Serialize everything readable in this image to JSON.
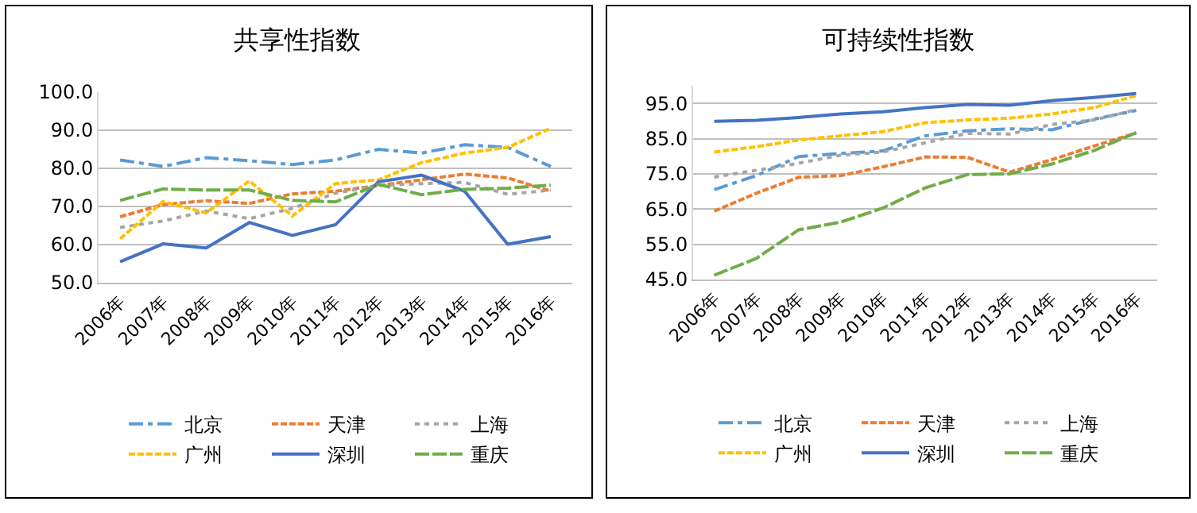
{
  "chart_data": [
    {
      "type": "line",
      "title": "共享性指数",
      "categories": [
        "2006年",
        "2007年",
        "2008年",
        "2009年",
        "2010年",
        "2011年",
        "2012年",
        "2013年",
        "2014年",
        "2015年",
        "2016年"
      ],
      "ylim": [
        50,
        100
      ],
      "yticks": [
        {
          "value": 50,
          "label": "50.0"
        },
        {
          "value": 60,
          "label": "60.0"
        },
        {
          "value": 70,
          "label": "70.0"
        },
        {
          "value": 80,
          "label": "80.0"
        },
        {
          "value": 90,
          "label": "90.0"
        },
        {
          "value": 100,
          "label": "100.0"
        }
      ],
      "grid": "y",
      "legend": "bottom",
      "marker": "none",
      "series": [
        {
          "name": "北京",
          "color": "#5b9bd5",
          "line_style": "dashdot",
          "values": [
            82.2,
            80.5,
            82.8,
            82,
            81,
            82.2,
            85,
            84,
            86.2,
            85.5,
            80.5
          ]
        },
        {
          "name": "天津",
          "color": "#ed7d31",
          "line_style": "dashed",
          "values": [
            67.3,
            70.5,
            71.5,
            70.8,
            73.3,
            74,
            75.5,
            77,
            78.5,
            77.5,
            74
          ]
        },
        {
          "name": "上海",
          "color": "#a5a5a5",
          "line_style": "dotted",
          "values": [
            64.5,
            66.2,
            68.8,
            66.8,
            69.5,
            73.5,
            75.5,
            76,
            76.3,
            73.2,
            74.3
          ]
        },
        {
          "name": "广州",
          "color": "#ffc000",
          "line_style": "dashed",
          "values": [
            61.5,
            71.3,
            68.3,
            76.7,
            67.5,
            76,
            77,
            81.5,
            84,
            85.5,
            90.5
          ]
        },
        {
          "name": "深圳",
          "color": "#4472c4",
          "line_style": "solid",
          "values": [
            55.5,
            60.2,
            59.1,
            65.8,
            62.4,
            65.2,
            76.5,
            78.2,
            74,
            60.1,
            62.1
          ]
        },
        {
          "name": "重庆",
          "color": "#70ad47",
          "line_style": "longdash",
          "values": [
            71.6,
            74.6,
            74.3,
            74.3,
            71.6,
            71.2,
            75.8,
            73.1,
            74.5,
            74.8,
            75.6
          ]
        }
      ]
    },
    {
      "type": "line",
      "title": "可持续性指数",
      "categories": [
        "2006年",
        "2007年",
        "2008年",
        "2009年",
        "2010年",
        "2011年",
        "2012年",
        "2013年",
        "2014年",
        "2015年",
        "2016年"
      ],
      "ylim": [
        45,
        100
      ],
      "yticks": [
        {
          "value": 45,
          "label": "45.0"
        },
        {
          "value": 55,
          "label": "55.0"
        },
        {
          "value": 65,
          "label": "65.0"
        },
        {
          "value": 75,
          "label": "75.0"
        },
        {
          "value": 85,
          "label": "85.0"
        },
        {
          "value": 95,
          "label": "95.0"
        }
      ],
      "grid": "y",
      "legend": "bottom",
      "marker": "none",
      "series": [
        {
          "name": "北京",
          "color": "#5b9bd5",
          "line_style": "dashdot",
          "values": [
            70.5,
            74.5,
            79.9,
            80.8,
            81.5,
            85.8,
            87.2,
            87.8,
            87.5,
            90.5,
            93
          ]
        },
        {
          "name": "天津",
          "color": "#ed7d31",
          "line_style": "dashed",
          "values": [
            64.4,
            69.5,
            74,
            74.5,
            77,
            79.8,
            79.7,
            75.5,
            79,
            82.9,
            86.6
          ]
        },
        {
          "name": "上海",
          "color": "#a5a5a5",
          "line_style": "dotted",
          "values": [
            74.1,
            76,
            78,
            80.3,
            81.2,
            83.8,
            86.5,
            86.3,
            89,
            90.3,
            93.2
          ]
        },
        {
          "name": "广州",
          "color": "#ffc000",
          "line_style": "dashed",
          "values": [
            81.2,
            82.7,
            84.6,
            85.8,
            87,
            89.5,
            90.3,
            90.8,
            92,
            93.8,
            97.2
          ]
        },
        {
          "name": "深圳",
          "color": "#4472c4",
          "line_style": "solid",
          "values": [
            89.9,
            90.2,
            91,
            92,
            92.6,
            93.8,
            94.7,
            94.5,
            95.8,
            96.7,
            97.8
          ]
        },
        {
          "name": "重庆",
          "color": "#70ad47",
          "line_style": "longdash",
          "values": [
            46.2,
            51,
            59.1,
            61.3,
            65.3,
            71,
            74.8,
            75,
            77.8,
            81.6,
            86.7
          ]
        }
      ]
    }
  ]
}
